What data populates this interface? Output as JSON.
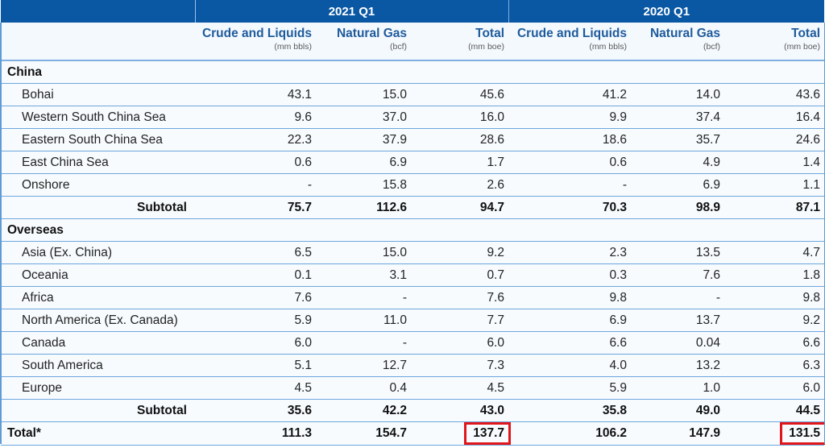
{
  "periods": [
    {
      "label": "2021 Q1"
    },
    {
      "label": "2020 Q1"
    }
  ],
  "columns": [
    {
      "title": "Crude and Liquids",
      "unit": "(mm bbls)"
    },
    {
      "title": "Natural Gas",
      "unit": "(bcf)"
    },
    {
      "title": "Total",
      "unit": "(mm boe)"
    },
    {
      "title": "Crude and Liquids",
      "unit": "(mm bbls)"
    },
    {
      "title": "Natural Gas",
      "unit": "(bcf)"
    },
    {
      "title": "Total",
      "unit": "(mm boe)"
    }
  ],
  "sections": {
    "china": {
      "title": "China",
      "rows": [
        {
          "label": "Bohai",
          "values": [
            "43.1",
            "15.0",
            "45.6",
            "41.2",
            "14.0",
            "43.6"
          ]
        },
        {
          "label": "Western South China Sea",
          "values": [
            "9.6",
            "37.0",
            "16.0",
            "9.9",
            "37.4",
            "16.4"
          ]
        },
        {
          "label": "Eastern South China Sea",
          "values": [
            "22.3",
            "37.9",
            "28.6",
            "18.6",
            "35.7",
            "24.6"
          ]
        },
        {
          "label": "East China Sea",
          "values": [
            "0.6",
            "6.9",
            "1.7",
            "0.6",
            "4.9",
            "1.4"
          ]
        },
        {
          "label": "Onshore",
          "values": [
            "-",
            "15.8",
            "2.6",
            "-",
            "6.9",
            "1.1"
          ]
        }
      ],
      "subtotal": {
        "label": "Subtotal",
        "values": [
          "75.7",
          "112.6",
          "94.7",
          "70.3",
          "98.9",
          "87.1"
        ]
      }
    },
    "overseas": {
      "title": "Overseas",
      "rows": [
        {
          "label": "Asia (Ex. China)",
          "values": [
            "6.5",
            "15.0",
            "9.2",
            "2.3",
            "13.5",
            "4.7"
          ]
        },
        {
          "label": "Oceania",
          "values": [
            "0.1",
            "3.1",
            "0.7",
            "0.3",
            "7.6",
            "1.8"
          ]
        },
        {
          "label": "Africa",
          "values": [
            "7.6",
            "-",
            "7.6",
            "9.8",
            "-",
            "9.8"
          ]
        },
        {
          "label": "North America (Ex. Canada)",
          "values": [
            "5.9",
            "11.0",
            "7.7",
            "6.9",
            "13.7",
            "9.2"
          ]
        },
        {
          "label": "Canada",
          "values": [
            "6.0",
            "-",
            "6.0",
            "6.6",
            "0.04",
            "6.6"
          ]
        },
        {
          "label": "South America",
          "values": [
            "5.1",
            "12.7",
            "7.3",
            "4.0",
            "13.2",
            "6.3"
          ]
        },
        {
          "label": "Europe",
          "values": [
            "4.5",
            "0.4",
            "4.5",
            "5.9",
            "1.0",
            "6.0"
          ]
        }
      ],
      "subtotal": {
        "label": "Subtotal",
        "values": [
          "35.6",
          "42.2",
          "43.0",
          "35.8",
          "49.0",
          "44.5"
        ]
      }
    }
  },
  "total": {
    "label": "Total*",
    "values": [
      "111.3",
      "154.7",
      "137.7",
      "106.2",
      "147.9",
      "131.5"
    ]
  },
  "highlight_color": "#e0161b",
  "header_color": "#0a57a4"
}
